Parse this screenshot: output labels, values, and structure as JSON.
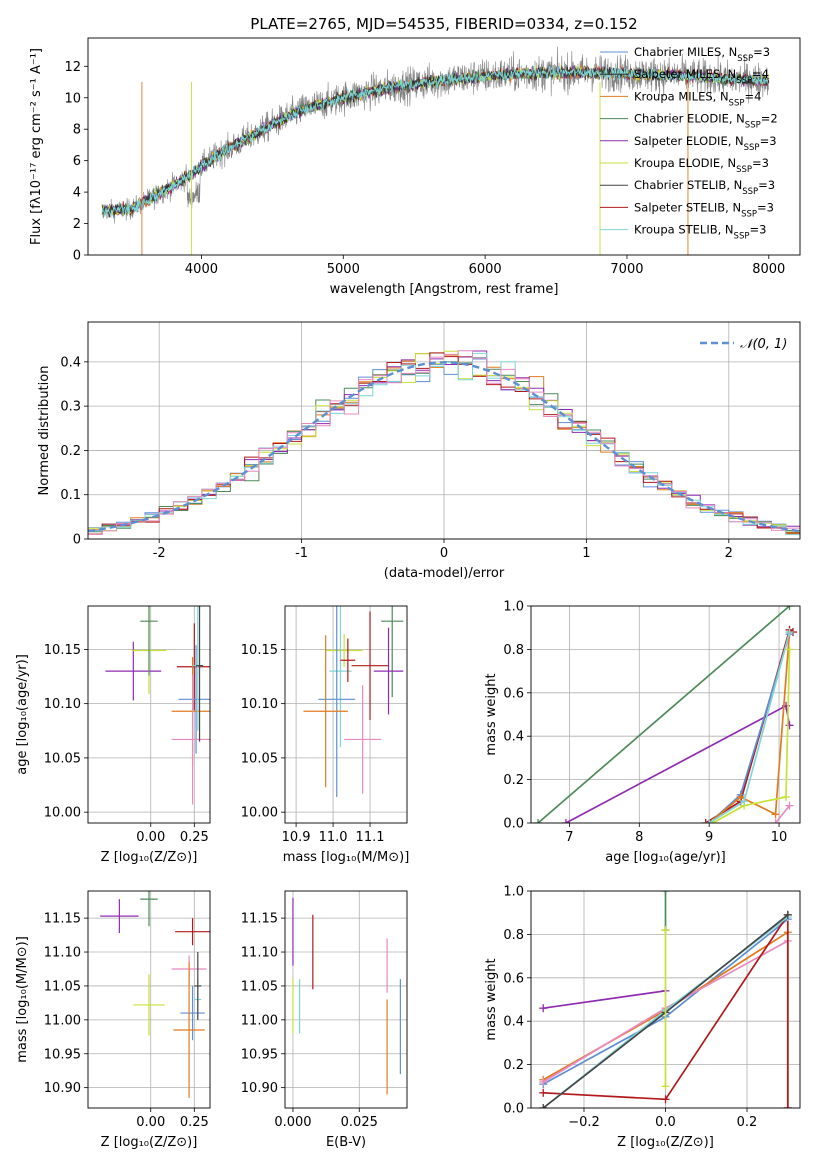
{
  "figure": {
    "title": "PLATE=2765, MJD=54535, FIBERID=0334, z=0.152"
  },
  "colors": {
    "Chabrier MILES": "#5f8fd3",
    "Salpeter MILES": "#333333",
    "Kroupa MILES": "#e07b1f",
    "Chabrier ELODIE": "#4f8a5a",
    "Salpeter ELODIE": "#8f2bb0",
    "Kroupa ELODIE": "#c8e03a",
    "Chabrier STELIB": "#444444",
    "Salpeter STELIB": "#b2181b",
    "Kroupa STELIB": "#7fd6d6",
    "normal": "#5f8fd3",
    "age_extra": "#e889c0",
    "data": "#808080"
  },
  "chart_data": [
    {
      "id": "spectrum",
      "type": "line",
      "title": "PLATE=2765, MJD=54535, FIBERID=0334, z=0.152",
      "xlabel": "wavelength [Angstrom, rest frame]",
      "ylabel": "Flux [fλ10⁻¹⁷ erg cm⁻² s⁻¹ A⁻¹]",
      "xlim": [
        3200,
        8220
      ],
      "ylim": [
        0,
        13.8
      ],
      "xticks": [
        4000,
        5000,
        6000,
        7000,
        8000
      ],
      "yticks": [
        0,
        2,
        4,
        6,
        8,
        10,
        12
      ],
      "grid": false,
      "legend_position": "top-right",
      "continuum": {
        "x": [
          3300,
          3500,
          3600,
          3800,
          3950,
          4100,
          4300,
          4500,
          4700,
          5000,
          5300,
          5600,
          5900,
          6200,
          6500,
          6800,
          7100,
          7400,
          7700,
          7950
        ],
        "y": [
          2.8,
          2.9,
          3.4,
          4.4,
          5.3,
          6.3,
          7.3,
          8.3,
          9.2,
          10.0,
          10.6,
          11.0,
          11.3,
          11.5,
          11.6,
          11.6,
          11.5,
          11.4,
          11.2,
          11.1
        ]
      },
      "series": [
        {
          "name": "Chabrier MILES",
          "nssp": "3"
        },
        {
          "name": "Salpeter MILES",
          "nssp": "4"
        },
        {
          "name": "Kroupa MILES",
          "nssp": "4"
        },
        {
          "name": "Chabrier ELODIE",
          "nssp": "2"
        },
        {
          "name": "Salpeter ELODIE",
          "nssp": "3"
        },
        {
          "name": "Kroupa ELODIE",
          "nssp": "3"
        },
        {
          "name": "Chabrier STELIB",
          "nssp": "3"
        },
        {
          "name": "Salpeter STELIB",
          "nssp": "3"
        },
        {
          "name": "Kroupa STELIB",
          "nssp": "3"
        }
      ]
    },
    {
      "id": "residuals",
      "type": "line",
      "xlabel": "(data-model)/error",
      "ylabel": "Normed distribution",
      "xlim": [
        -2.5,
        2.5
      ],
      "ylim": [
        0,
        0.49
      ],
      "xticks": [
        -2,
        -1,
        0,
        1,
        2
      ],
      "yticks": [
        0.0,
        0.1,
        0.2,
        0.3,
        0.4
      ],
      "grid": true,
      "legend": [
        {
          "label": "𝒩(0, 1)",
          "style": "dashed"
        }
      ],
      "legend_position": "top-right"
    },
    {
      "id": "age_vs_Z",
      "type": "scatter",
      "xlabel": "Z [log₁₀(Z/Z⊙)]",
      "ylabel": "age  [log₁₀(age/yr)]",
      "xlim": [
        -0.36,
        0.34
      ],
      "ylim": [
        9.99,
        10.19
      ],
      "xticks": [
        0.0,
        0.25
      ],
      "xtick_labels": [
        "0.00",
        "0.25"
      ],
      "yticks": [
        10.0,
        10.05,
        10.1,
        10.15
      ],
      "ytick_labels": [
        "10.00",
        "10.05",
        "10.10",
        "10.15"
      ],
      "grid": true,
      "points": [
        {
          "name": "Salpeter ELODIE",
          "x": -0.1,
          "y": 10.13,
          "xerr": 0.16,
          "yerr": 0.027
        },
        {
          "name": "Kroupa ELODIE",
          "x": -0.01,
          "y": 10.149,
          "xerr": 0.1,
          "yerr": 0.04
        },
        {
          "name": "Chabrier ELODIE",
          "x": -0.01,
          "y": 10.176,
          "xerr": 0.05,
          "yerr": 0.05
        },
        {
          "name": "Salpeter STELIB",
          "x": 0.25,
          "y": 10.134,
          "xerr": 0.1,
          "yerr": 0.04
        },
        {
          "name": "Chabrier MILES",
          "x": 0.26,
          "y": 10.104,
          "xerr": 0.1,
          "yerr": 0.05
        },
        {
          "name": "Kroupa MILES",
          "x": 0.24,
          "y": 10.093,
          "xerr": 0.12,
          "yerr": 0.05
        },
        {
          "name": "age_extra",
          "x": 0.24,
          "y": 10.067,
          "xerr": 0.12,
          "yerr": 0.06
        },
        {
          "name": "Kroupa STELIB",
          "x": 0.27,
          "y": 10.135,
          "xerr": 0.03,
          "yerr": 0.06
        },
        {
          "name": "Chabrier STELIB",
          "x": 0.28,
          "y": 10.135,
          "xerr": 0.02,
          "yerr": 0.07
        }
      ]
    },
    {
      "id": "age_vs_mass",
      "type": "scatter",
      "xlabel": "mass [log₁₀(M/M⊙)]",
      "ylabel": "",
      "xlim": [
        10.87,
        11.2
      ],
      "ylim": [
        9.99,
        10.19
      ],
      "xticks": [
        10.9,
        11.0,
        11.1
      ],
      "xtick_labels": [
        "10.9",
        "11.0",
        "11.1"
      ],
      "yticks": [
        10.0,
        10.05,
        10.1,
        10.15
      ],
      "ytick_labels": [
        "10.00",
        "10.05",
        "10.10",
        "10.15"
      ],
      "grid": true,
      "points": [
        {
          "name": "Kroupa ELODIE",
          "x": 11.03,
          "y": 10.149,
          "xerr": 0.05,
          "yerr": 0.015
        },
        {
          "name": "Chabrier ELODIE",
          "x": 11.16,
          "y": 10.176,
          "xerr": 0.03,
          "yerr": 0.07
        },
        {
          "name": "Salpeter ELODIE",
          "x": 11.15,
          "y": 10.13,
          "xerr": 0.04,
          "yerr": 0.04
        },
        {
          "name": "Salpeter STELIB",
          "x": 11.1,
          "y": 10.135,
          "xerr": 0.05,
          "yerr": 0.05
        },
        {
          "name": "Kroupa STELIB",
          "x": 11.02,
          "y": 10.13,
          "xerr": 0.03,
          "yerr": 0.07
        },
        {
          "name": "Chabrier MILES",
          "x": 11.01,
          "y": 10.104,
          "xerr": 0.05,
          "yerr": 0.09
        },
        {
          "name": "Kroupa MILES",
          "x": 10.98,
          "y": 10.093,
          "xerr": 0.06,
          "yerr": 0.07
        },
        {
          "name": "age_extra",
          "x": 11.08,
          "y": 10.067,
          "xerr": 0.05,
          "yerr": 0.05
        },
        {
          "name": "Salpeter STELIB",
          "x": 11.04,
          "y": 10.14,
          "xerr": 0.02,
          "yerr": 0.02
        }
      ]
    },
    {
      "id": "mass_weight_vs_age",
      "type": "line",
      "xlabel": "age  [log₁₀(age/yr)]",
      "ylabel": "mass weight",
      "xlim": [
        6.45,
        10.3
      ],
      "ylim": [
        0,
        1.0
      ],
      "xticks": [
        7,
        8,
        9,
        10
      ],
      "yticks": [
        0.0,
        0.2,
        0.4,
        0.6,
        0.8,
        1.0
      ],
      "ytick_labels": [
        "0.0",
        "0.2",
        "0.4",
        "0.6",
        "0.8",
        "1.0"
      ],
      "grid": true,
      "series": [
        {
          "name": "Chabrier ELODIE",
          "x": [
            6.55,
            10.15
          ],
          "y": [
            0.0,
            1.0
          ]
        },
        {
          "name": "Salpeter ELODIE",
          "x": [
            6.95,
            10.1,
            10.15
          ],
          "y": [
            0.0,
            0.54,
            0.45
          ]
        },
        {
          "name": "Salpeter STELIB",
          "x": [
            8.95,
            9.45,
            10.15,
            10.2
          ],
          "y": [
            0.0,
            0.1,
            0.89,
            0.88
          ]
        },
        {
          "name": "Chabrier MILES",
          "x": [
            9.0,
            9.45,
            10.15
          ],
          "y": [
            0.0,
            0.13,
            0.87
          ]
        },
        {
          "name": "Kroupa MILES",
          "x": [
            9.0,
            9.45,
            9.95,
            10.15
          ],
          "y": [
            0.0,
            0.12,
            0.04,
            0.88
          ]
        },
        {
          "name": "Kroupa ELODIE",
          "x": [
            9.05,
            9.5,
            10.1,
            10.15
          ],
          "y": [
            0.0,
            0.08,
            0.12,
            0.8
          ]
        },
        {
          "name": "Kroupa STELIB",
          "x": [
            9.0,
            9.5,
            10.15
          ],
          "y": [
            0.0,
            0.1,
            0.88
          ]
        },
        {
          "name": "age_extra",
          "x": [
            9.95,
            10.15
          ],
          "y": [
            0.0,
            0.08
          ]
        }
      ]
    },
    {
      "id": "mass_vs_Z",
      "type": "scatter",
      "xlabel": "Z [log₁₀(Z/Z⊙)]",
      "ylabel": "mass [log₁₀(M/M⊙)]",
      "xlim": [
        -0.36,
        0.34
      ],
      "ylim": [
        10.87,
        11.19
      ],
      "xticks": [
        0.0,
        0.25
      ],
      "xtick_labels": [
        "0.00",
        "0.25"
      ],
      "yticks": [
        10.9,
        10.95,
        11.0,
        11.05,
        11.1,
        11.15
      ],
      "ytick_labels": [
        "10.90",
        "10.95",
        "11.00",
        "11.05",
        "11.10",
        "11.15"
      ],
      "grid": true,
      "points": [
        {
          "name": "Salpeter ELODIE",
          "x": -0.18,
          "y": 11.153,
          "xerr": 0.11,
          "yerr": 0.025
        },
        {
          "name": "Chabrier ELODIE",
          "x": -0.01,
          "y": 11.178,
          "xerr": 0.05,
          "yerr": 0.04
        },
        {
          "name": "Salpeter STELIB",
          "x": 0.24,
          "y": 11.13,
          "xerr": 0.1,
          "yerr": 0.02
        },
        {
          "name": "age_extra",
          "x": 0.22,
          "y": 11.075,
          "xerr": 0.1,
          "yerr": 0.02
        },
        {
          "name": "Kroupa ELODIE",
          "x": -0.01,
          "y": 11.022,
          "xerr": 0.09,
          "yerr": 0.045
        },
        {
          "name": "Chabrier MILES",
          "x": 0.24,
          "y": 11.01,
          "xerr": 0.07,
          "yerr": 0.04
        },
        {
          "name": "Kroupa MILES",
          "x": 0.22,
          "y": 10.985,
          "xerr": 0.09,
          "yerr": 0.1
        },
        {
          "name": "Kroupa STELIB",
          "x": 0.27,
          "y": 11.03,
          "xerr": 0.02,
          "yerr": 0.03
        },
        {
          "name": "Chabrier STELIB",
          "x": 0.27,
          "y": 11.05,
          "xerr": 0.02,
          "yerr": 0.05
        }
      ]
    },
    {
      "id": "mass_vs_ebv",
      "type": "scatter",
      "xlabel": "E(B-V)",
      "ylabel": "",
      "xlim": [
        -0.003,
        0.043
      ],
      "ylim": [
        10.87,
        11.19
      ],
      "xticks": [
        0.0,
        0.025
      ],
      "xtick_labels": [
        "0.000",
        "0.025"
      ],
      "yticks": [
        10.9,
        10.95,
        11.0,
        11.05,
        11.1,
        11.15
      ],
      "ytick_labels": [
        "10.90",
        "10.95",
        "11.00",
        "11.05",
        "11.10",
        "11.15"
      ],
      "grid": true,
      "points": [
        {
          "name": "Salpeter ELODIE",
          "x": 0.0,
          "y": 11.13,
          "xerr": 0,
          "yerr": 0.05
        },
        {
          "name": "Kroupa ELODIE",
          "x": 0.0,
          "y": 11.02,
          "xerr": 0,
          "yerr": 0.04
        },
        {
          "name": "Salpeter STELIB",
          "x": 0.0075,
          "y": 11.1,
          "xerr": 0,
          "yerr": 0.055
        },
        {
          "name": "Kroupa STELIB",
          "x": 0.0025,
          "y": 11.02,
          "xerr": 0,
          "yerr": 0.04
        },
        {
          "name": "age_extra",
          "x": 0.0355,
          "y": 11.08,
          "xerr": 0,
          "yerr": 0.04
        },
        {
          "name": "Kroupa MILES",
          "x": 0.0355,
          "y": 10.96,
          "xerr": 0,
          "yerr": 0.07
        },
        {
          "name": "Chabrier MILES",
          "x": 0.0405,
          "y": 10.99,
          "xerr": 0,
          "yerr": 0.07
        }
      ]
    },
    {
      "id": "mass_weight_vs_Z",
      "type": "line",
      "xlabel": "Z [log₁₀(Z/Z⊙)]",
      "ylabel": "mass weight",
      "xlim": [
        -0.33,
        0.33
      ],
      "ylim": [
        0,
        1.0
      ],
      "xticks": [
        -0.2,
        0.0,
        0.2
      ],
      "xtick_labels": [
        "−0.2",
        "0.0",
        "0.2"
      ],
      "yticks": [
        0.0,
        0.2,
        0.4,
        0.6,
        0.8,
        1.0
      ],
      "ytick_labels": [
        "0.0",
        "0.2",
        "0.4",
        "0.6",
        "0.8",
        "1.0"
      ],
      "grid": true,
      "series": [
        {
          "name": "Salpeter ELODIE",
          "x": [
            -0.3,
            0.0
          ],
          "y": [
            0.46,
            0.54
          ]
        },
        {
          "name": "Chabrier MILES",
          "x": [
            -0.3,
            0.0,
            0.3
          ],
          "y": [
            0.11,
            0.42,
            0.87
          ]
        },
        {
          "name": "Kroupa MILES",
          "x": [
            -0.3,
            0.0,
            0.3,
            0.3
          ],
          "y": [
            0.13,
            0.45,
            0.81,
            0.0
          ]
        },
        {
          "name": "age_extra",
          "x": [
            -0.3,
            0.0,
            0.3
          ],
          "y": [
            0.12,
            0.46,
            0.77
          ]
        },
        {
          "name": "Salpeter STELIB",
          "x": [
            -0.3,
            0.0,
            0.3,
            0.3
          ],
          "y": [
            0.07,
            0.04,
            0.89,
            0.0
          ]
        },
        {
          "name": "Kroupa STELIB",
          "x": [
            -0.3,
            0.0,
            0.3
          ],
          "y": [
            0.0,
            0.45,
            0.88
          ]
        },
        {
          "name": "Chabrier STELIB",
          "x": [
            -0.3,
            0.0,
            0.3
          ],
          "y": [
            0.0,
            0.44,
            0.89
          ]
        },
        {
          "name": "Chabrier ELODIE",
          "x": [
            0.0,
            0.0
          ],
          "y": [
            0.82,
            1.0
          ]
        },
        {
          "name": "Kroupa ELODIE",
          "x": [
            0.0,
            0.0
          ],
          "y": [
            0.1,
            0.82
          ]
        }
      ]
    }
  ]
}
